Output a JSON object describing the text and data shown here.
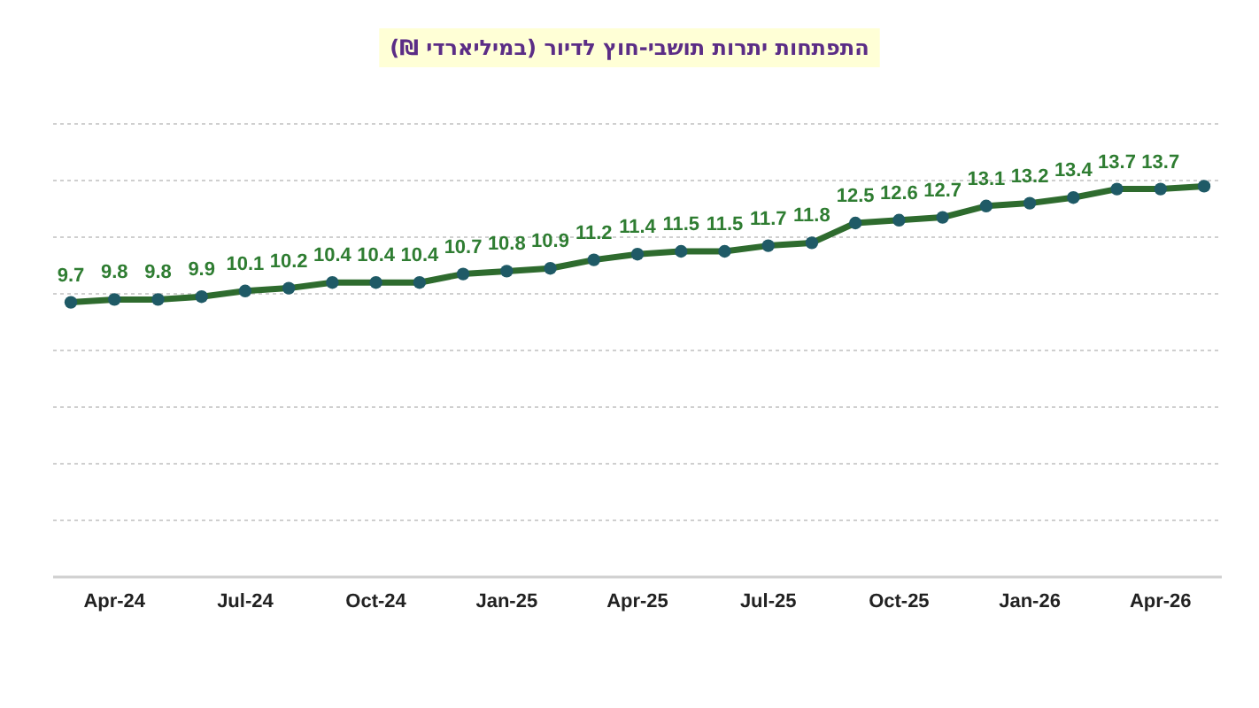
{
  "chart_data": {
    "type": "line",
    "title": "התפתחות יתרות תושבי-חוץ לדיור (במיליארדי ₪)",
    "categories": [
      null,
      "Apr-24",
      null,
      null,
      "Jul-24",
      null,
      null,
      "Oct-24",
      null,
      null,
      "Jan-25",
      null,
      null,
      "Apr-25",
      null,
      null,
      "Jul-25",
      null,
      null,
      "Oct-25",
      null,
      null,
      "Jan-26",
      null,
      null,
      "Apr-26",
      null
    ],
    "series": [
      {
        "color": "#2e6b2e",
        "values": [
          9.7,
          9.8,
          9.8,
          9.9,
          10.1,
          10.2,
          10.4,
          10.4,
          10.4,
          10.7,
          10.8,
          10.9,
          11.2,
          11.4,
          11.5,
          11.5,
          11.7,
          11.8,
          12.5,
          12.6,
          12.7,
          13.1,
          13.2,
          13.4,
          13.7,
          13.7,
          13.8
        ],
        "value_labels": [
          "9.7",
          "9.8",
          "9.8",
          "9.9",
          "10.1",
          "10.2",
          "10.4",
          "10.4",
          "10.4",
          "10.7",
          "10.8",
          "10.9",
          "11.2",
          "11.4",
          "11.5",
          "11.5",
          "11.7",
          "11.8",
          "12.5",
          "12.6",
          "12.7",
          "13.1",
          "13.2",
          "13.4",
          "13.7",
          "13.7",
          null
        ]
      }
    ],
    "ylim": [
      0,
      16
    ],
    "yticks": [
      {
        "value": 0,
        "label": null
      },
      {
        "value": 2,
        "label": null
      },
      {
        "value": 4,
        "label": null
      },
      {
        "value": 6,
        "label": null
      },
      {
        "value": 8,
        "label": null
      },
      {
        "value": 10,
        "label": null
      },
      {
        "value": 12,
        "label": null
      },
      {
        "value": 14,
        "label": null
      },
      {
        "value": 16,
        "label": null
      }
    ],
    "tick_labels": "x",
    "grid": "y",
    "marker": "circle"
  }
}
